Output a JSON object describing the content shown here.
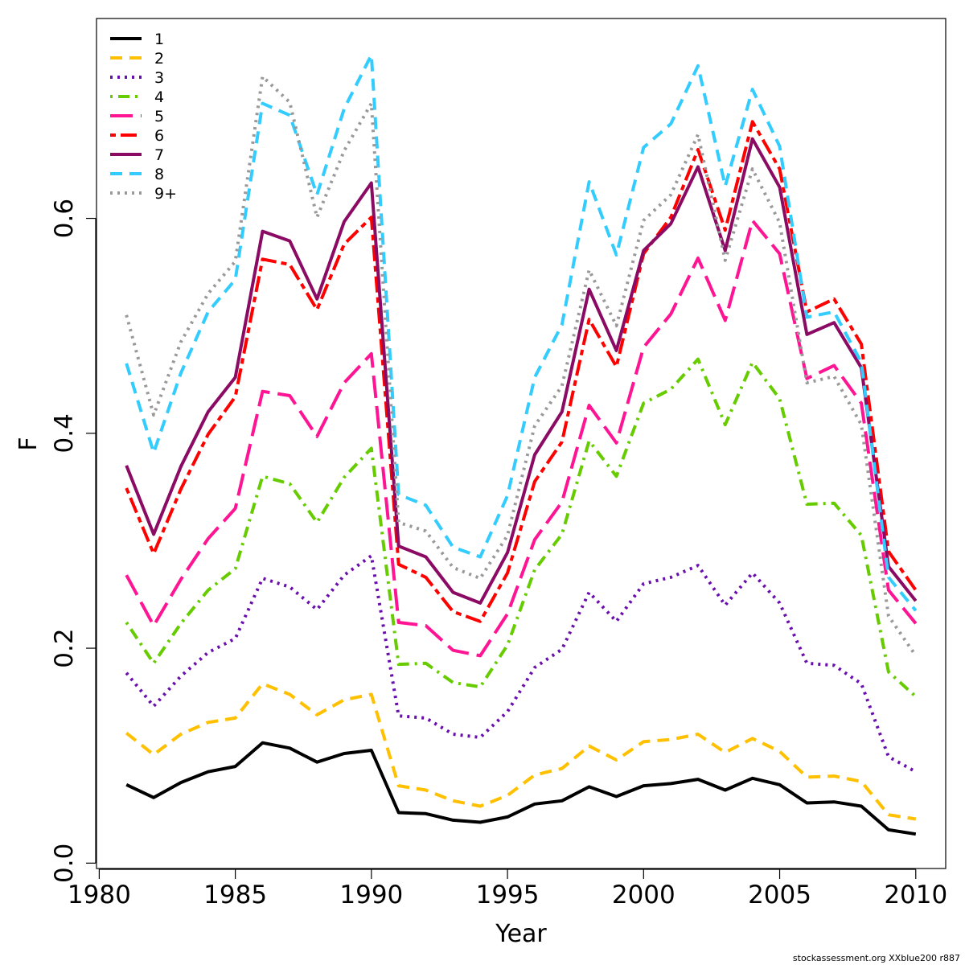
{
  "chart_data": {
    "type": "line",
    "xlabel": "Year",
    "ylabel": "F",
    "xlim": [
      1979.9,
      2011.1
    ],
    "ylim": [
      -0.005,
      0.786
    ],
    "xticks": [
      1980,
      1985,
      1990,
      1995,
      2000,
      2005,
      2010
    ],
    "yticks": [
      0.0,
      0.2,
      0.4,
      0.6
    ],
    "ytick_labels": [
      "0.0",
      "0.2",
      "0.4",
      "0.6"
    ],
    "grid": false,
    "legend_position": "top-left",
    "x": [
      1981,
      1982,
      1983,
      1984,
      1985,
      1986,
      1987,
      1988,
      1989,
      1990,
      1991,
      1992,
      1993,
      1994,
      1995,
      1996,
      1997,
      1998,
      1999,
      2000,
      2001,
      2002,
      2003,
      2004,
      2005,
      2006,
      2007,
      2008,
      2009,
      2010
    ],
    "series": [
      {
        "name": "1",
        "color": "#000000",
        "dash": "solid",
        "values": [
          0.073,
          0.061,
          0.075,
          0.085,
          0.09,
          0.112,
          0.107,
          0.094,
          0.102,
          0.105,
          0.047,
          0.046,
          0.04,
          0.038,
          0.043,
          0.055,
          0.058,
          0.071,
          0.062,
          0.072,
          0.074,
          0.078,
          0.068,
          0.079,
          0.073,
          0.056,
          0.057,
          0.053,
          0.031,
          0.027
        ]
      },
      {
        "name": "2",
        "color": "#FFC000",
        "dash": "dashed",
        "values": [
          0.121,
          0.101,
          0.12,
          0.131,
          0.135,
          0.167,
          0.157,
          0.138,
          0.152,
          0.157,
          0.072,
          0.068,
          0.058,
          0.053,
          0.063,
          0.082,
          0.088,
          0.109,
          0.096,
          0.113,
          0.115,
          0.12,
          0.103,
          0.116,
          0.104,
          0.08,
          0.081,
          0.076,
          0.045,
          0.041
        ]
      },
      {
        "name": "3",
        "color": "#6A0DAD",
        "dash": "dotted",
        "values": [
          0.177,
          0.146,
          0.174,
          0.196,
          0.209,
          0.265,
          0.257,
          0.236,
          0.268,
          0.286,
          0.137,
          0.135,
          0.12,
          0.117,
          0.141,
          0.182,
          0.199,
          0.252,
          0.225,
          0.26,
          0.266,
          0.277,
          0.24,
          0.27,
          0.242,
          0.186,
          0.184,
          0.167,
          0.099,
          0.085
        ]
      },
      {
        "name": "4",
        "color": "#66CC00",
        "dash": "dotdash",
        "values": [
          0.224,
          0.186,
          0.223,
          0.254,
          0.274,
          0.36,
          0.353,
          0.317,
          0.359,
          0.386,
          0.185,
          0.186,
          0.168,
          0.164,
          0.203,
          0.273,
          0.306,
          0.393,
          0.36,
          0.428,
          0.441,
          0.469,
          0.408,
          0.466,
          0.432,
          0.334,
          0.335,
          0.305,
          0.178,
          0.155
        ]
      },
      {
        "name": "5",
        "color": "#FF1493",
        "dash": "longdash",
        "values": [
          0.268,
          0.221,
          0.264,
          0.302,
          0.33,
          0.439,
          0.435,
          0.397,
          0.447,
          0.474,
          0.224,
          0.221,
          0.198,
          0.193,
          0.232,
          0.301,
          0.336,
          0.426,
          0.391,
          0.48,
          0.511,
          0.563,
          0.505,
          0.598,
          0.567,
          0.451,
          0.463,
          0.428,
          0.254,
          0.223
        ]
      },
      {
        "name": "6",
        "color": "#FF0000",
        "dash": "twodash",
        "values": [
          0.349,
          0.288,
          0.348,
          0.399,
          0.434,
          0.562,
          0.557,
          0.515,
          0.576,
          0.601,
          0.278,
          0.266,
          0.234,
          0.225,
          0.27,
          0.355,
          0.392,
          0.506,
          0.462,
          0.567,
          0.601,
          0.664,
          0.589,
          0.69,
          0.646,
          0.513,
          0.525,
          0.483,
          0.29,
          0.254
        ]
      },
      {
        "name": "7",
        "color": "#8B0A64",
        "dash": "solid",
        "values": [
          0.37,
          0.306,
          0.369,
          0.42,
          0.452,
          0.588,
          0.579,
          0.525,
          0.597,
          0.633,
          0.295,
          0.285,
          0.252,
          0.242,
          0.289,
          0.38,
          0.42,
          0.534,
          0.477,
          0.57,
          0.595,
          0.648,
          0.57,
          0.674,
          0.629,
          0.492,
          0.503,
          0.461,
          0.276,
          0.244
        ]
      },
      {
        "name": "8",
        "color": "#33CCFF",
        "dash": "dashed",
        "values": [
          0.465,
          0.382,
          0.456,
          0.513,
          0.543,
          0.707,
          0.696,
          0.622,
          0.702,
          0.752,
          0.343,
          0.333,
          0.294,
          0.285,
          0.342,
          0.452,
          0.501,
          0.634,
          0.566,
          0.666,
          0.688,
          0.742,
          0.63,
          0.72,
          0.667,
          0.508,
          0.513,
          0.466,
          0.266,
          0.235
        ]
      },
      {
        "name": "9+",
        "color": "#999999",
        "dash": "dotted",
        "values": [
          0.51,
          0.417,
          0.485,
          0.53,
          0.56,
          0.732,
          0.708,
          0.601,
          0.663,
          0.707,
          0.317,
          0.309,
          0.275,
          0.265,
          0.305,
          0.407,
          0.444,
          0.552,
          0.5,
          0.598,
          0.622,
          0.678,
          0.561,
          0.646,
          0.596,
          0.447,
          0.453,
          0.408,
          0.23,
          0.193
        ]
      }
    ]
  },
  "credit": "stockassessment.org XXblue200 r887"
}
